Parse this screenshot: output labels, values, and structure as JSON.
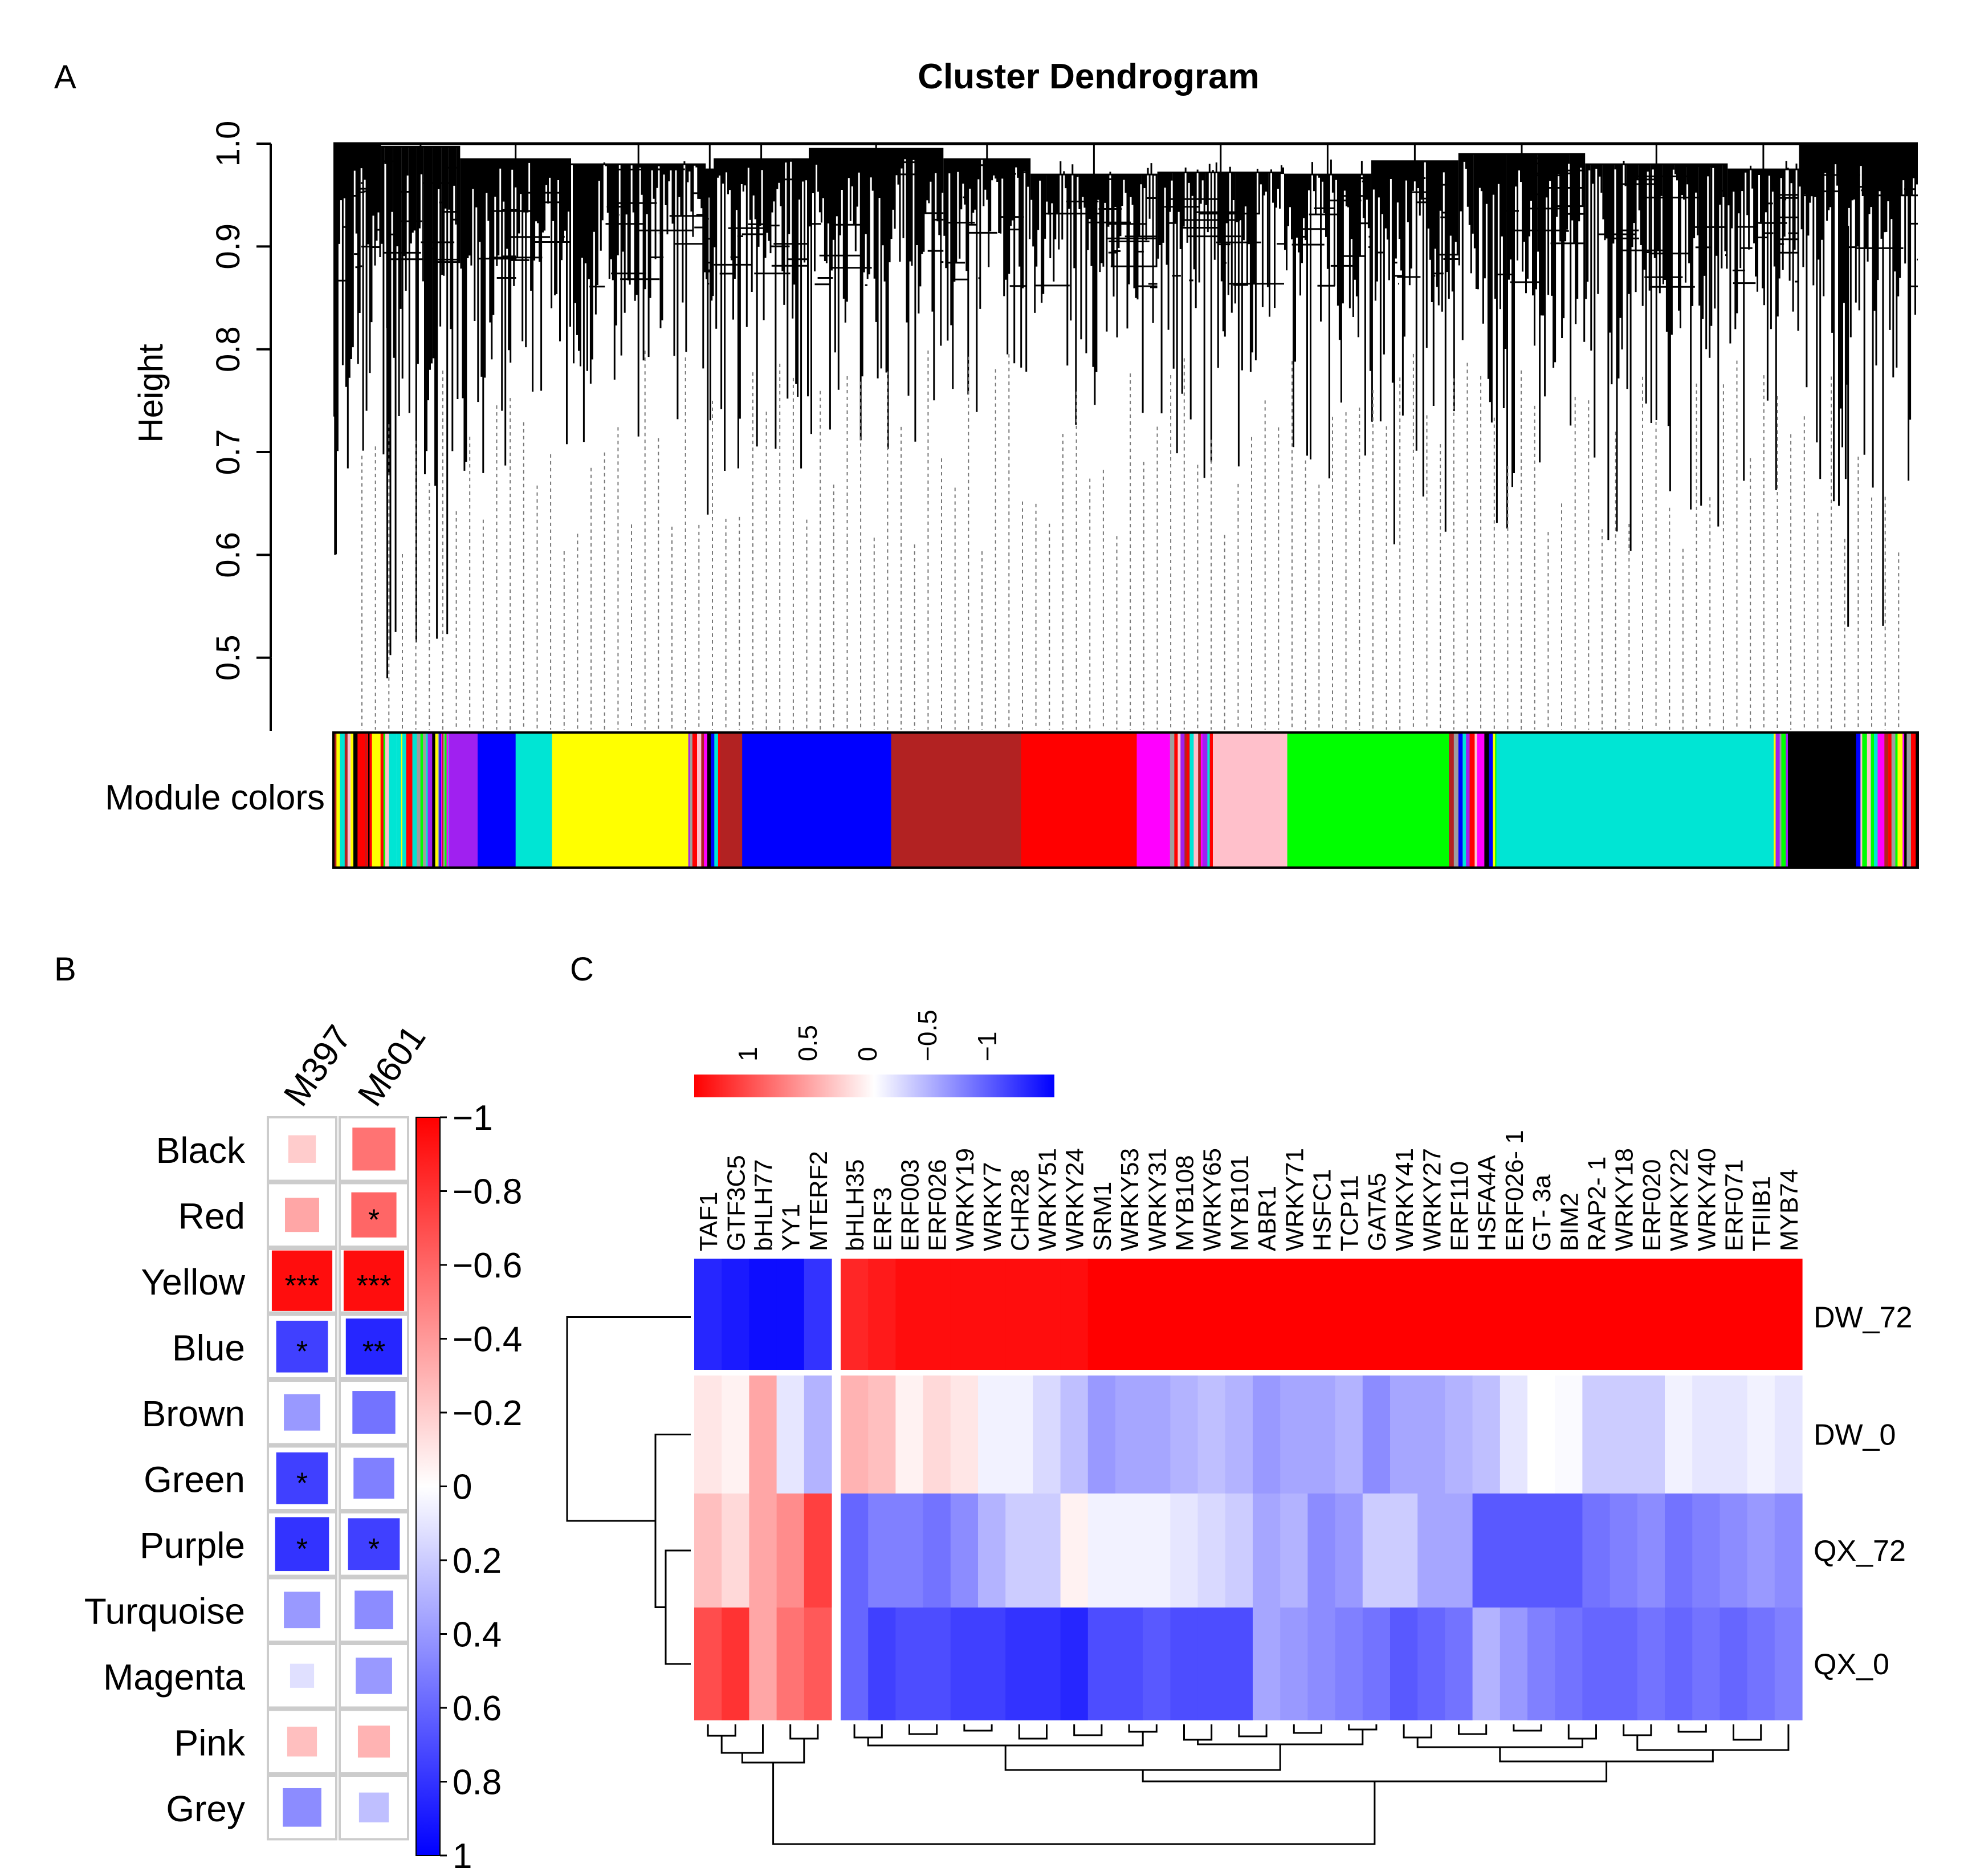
{
  "panel_labels": {
    "a": "A",
    "b": "B",
    "c": "C"
  },
  "chart_data": [
    {
      "id": "A",
      "type": "dendrogram",
      "title": "Cluster Dendrogram",
      "ylabel": "Height",
      "ylim": [
        0.43,
        1.0
      ],
      "yticks": [
        "0.5",
        "0.6",
        "0.7",
        "0.8",
        "0.9",
        "1.0"
      ],
      "module_colors_label": "Module colors",
      "module_color_segments": [
        {
          "color": "mixed",
          "fraction": 0.073
        },
        {
          "color": "#a020f0",
          "fraction": 0.018
        },
        {
          "color": "#0000ff",
          "fraction": 0.024
        },
        {
          "color": "#00e5d4",
          "fraction": 0.023
        },
        {
          "color": "#ffff00",
          "fraction": 0.086
        },
        {
          "color": "mixed",
          "fraction": 0.02
        },
        {
          "color": "#b22222",
          "fraction": 0.014
        },
        {
          "color": "#0000ff",
          "fraction": 0.094
        },
        {
          "color": "#b22222",
          "fraction": 0.082
        },
        {
          "color": "#ff0000",
          "fraction": 0.073
        },
        {
          "color": "#ff00ff",
          "fraction": 0.021
        },
        {
          "color": "mixed",
          "fraction": 0.029
        },
        {
          "color": "#ffc0cb",
          "fraction": 0.045
        },
        {
          "color": "#00ff00",
          "fraction": 0.102
        },
        {
          "color": "mixed",
          "fraction": 0.03
        },
        {
          "color": "#00e5d4",
          "fraction": 0.175
        },
        {
          "color": "mixed",
          "fraction": 0.009
        },
        {
          "color": "#000000",
          "fraction": 0.043
        },
        {
          "color": "mixed",
          "fraction": 0.039
        }
      ]
    },
    {
      "id": "B",
      "type": "heatmap",
      "columns": [
        "M397",
        "M601"
      ],
      "rows": [
        {
          "name": "Black",
          "values": [
            -0.2,
            -0.55
          ],
          "stars": [
            "",
            ""
          ]
        },
        {
          "name": "Red",
          "values": [
            -0.35,
            -0.6
          ],
          "stars": [
            "",
            "*"
          ]
        },
        {
          "name": "Yellow",
          "values": [
            -0.95,
            -0.95
          ],
          "stars": [
            "***",
            "***"
          ]
        },
        {
          "name": "Blue",
          "values": [
            0.75,
            0.85
          ],
          "stars": [
            "*",
            "**"
          ]
        },
        {
          "name": "Brown",
          "values": [
            0.4,
            0.55
          ],
          "stars": [
            "",
            ""
          ]
        },
        {
          "name": "Green",
          "values": [
            0.75,
            0.5
          ],
          "stars": [
            "*",
            ""
          ]
        },
        {
          "name": "Purple",
          "values": [
            0.8,
            0.75
          ],
          "stars": [
            "*",
            "*"
          ]
        },
        {
          "name": "Turquoise",
          "values": [
            0.4,
            0.45
          ],
          "stars": [
            "",
            ""
          ]
        },
        {
          "name": "Magenta",
          "values": [
            0.12,
            0.4
          ],
          "stars": [
            "",
            ""
          ]
        },
        {
          "name": "Pink",
          "values": [
            -0.25,
            -0.3
          ],
          "stars": [
            "",
            ""
          ]
        },
        {
          "name": "Grey",
          "values": [
            0.45,
            0.25
          ],
          "stars": [
            "",
            ""
          ]
        }
      ],
      "colorbar_ticks": [
        "−1",
        "−0.8",
        "−0.6",
        "−0.4",
        "−0.2",
        "0",
        "0.2",
        "0.4",
        "0.6",
        "0.8",
        "1"
      ],
      "colorbar_range": [
        -1,
        1
      ]
    },
    {
      "id": "C",
      "type": "heatmap",
      "legend_ticks": [
        "1",
        "0.5",
        "0",
        "−0.5",
        "−1"
      ],
      "legend_range": [
        1,
        -1
      ],
      "rows": [
        "DW_72",
        "DW_0",
        "QX_72",
        "QX_0"
      ],
      "group1_columns": [
        "TAF1",
        "GTF3C5",
        "bHLH77",
        "YY1",
        "MTERF2"
      ],
      "group2_columns": [
        "bHLH35",
        "ERF3",
        "ERF003",
        "ERF026",
        "WRKY19",
        "WRKY7",
        "CHR28",
        "WRKY51",
        "WRKY24",
        "SRM1",
        "WRKY53",
        "WRKY31",
        "MYB108",
        "WRKY65",
        "MYB101",
        "ABR1",
        "WRKY71",
        "HSFC1",
        "TCP11",
        "GATA5",
        "WRKY41",
        "WRKY27",
        "ERF110",
        "HSFA4A",
        "ERF026- 1",
        "GT- 3a",
        "BIM2",
        "RAP2- 1",
        "WRKY18",
        "ERF020",
        "WRKY22",
        "WRKY40",
        "ERF071",
        "TFIIB1",
        "MYB74"
      ],
      "values": [
        [
          -0.85,
          -0.9,
          -0.95,
          -0.95,
          -0.8,
          0.85,
          0.9,
          0.95,
          0.95,
          0.95,
          0.95,
          0.95,
          0.95,
          0.95,
          1,
          1,
          1,
          1,
          1,
          1,
          1,
          1,
          1,
          1,
          1,
          1,
          1,
          1,
          1,
          1,
          1,
          1,
          1,
          1,
          1,
          1,
          1,
          1,
          1,
          1
        ],
        [
          0.1,
          0.05,
          0.35,
          -0.1,
          -0.3,
          0.3,
          0.25,
          0.05,
          0.15,
          0.1,
          -0.05,
          -0.05,
          -0.15,
          -0.25,
          -0.4,
          -0.35,
          -0.35,
          -0.3,
          -0.25,
          -0.3,
          -0.4,
          -0.35,
          -0.35,
          -0.3,
          -0.45,
          -0.35,
          -0.35,
          -0.3,
          -0.25,
          -0.1,
          0.0,
          -0.02,
          -0.2,
          -0.2,
          -0.2,
          -0.05,
          -0.1,
          -0.1,
          -0.05,
          -0.1
        ],
        [
          0.25,
          0.15,
          0.35,
          0.45,
          0.75,
          -0.6,
          -0.5,
          -0.5,
          -0.55,
          -0.45,
          -0.3,
          -0.2,
          -0.2,
          0.05,
          -0.05,
          -0.05,
          -0.05,
          -0.1,
          -0.15,
          -0.2,
          -0.35,
          -0.3,
          -0.45,
          -0.4,
          -0.2,
          -0.2,
          -0.35,
          -0.35,
          -0.65,
          -0.65,
          -0.65,
          -0.65,
          -0.55,
          -0.5,
          -0.45,
          -0.55,
          -0.5,
          -0.45,
          -0.4,
          -0.45
        ],
        [
          0.7,
          0.8,
          0.35,
          0.55,
          0.65,
          -0.6,
          -0.75,
          -0.7,
          -0.7,
          -0.75,
          -0.75,
          -0.8,
          -0.8,
          -0.85,
          -0.7,
          -0.7,
          -0.65,
          -0.7,
          -0.7,
          -0.7,
          -0.35,
          -0.4,
          -0.45,
          -0.5,
          -0.55,
          -0.65,
          -0.6,
          -0.55,
          -0.3,
          -0.4,
          -0.5,
          -0.55,
          -0.6,
          -0.6,
          -0.55,
          -0.6,
          -0.55,
          -0.6,
          -0.55,
          -0.5
        ]
      ]
    }
  ]
}
